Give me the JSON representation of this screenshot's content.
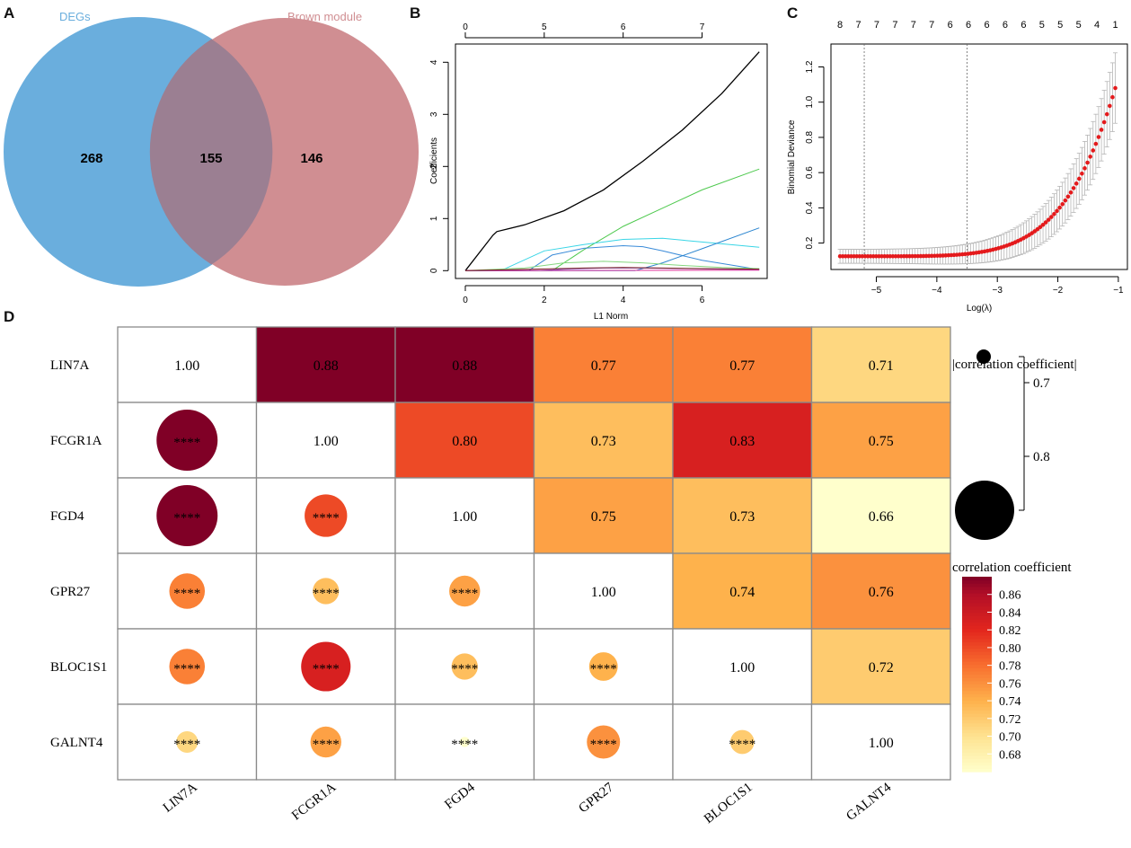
{
  "panels": {
    "A": "A",
    "B": "B",
    "C": "C",
    "D": "D"
  },
  "chart_data": [
    {
      "type": "venn",
      "panel": "A",
      "sets": [
        {
          "name": "DEGs",
          "color": "#6aaedd"
        },
        {
          "name": "Brown module",
          "color": "#d08e92"
        }
      ],
      "counts": {
        "only_first": "268",
        "intersection": "155",
        "only_second": "146"
      },
      "overlap_color": "#9b7f92"
    },
    {
      "type": "line",
      "panel": "B",
      "title": "",
      "xlabel": "L1 Norm",
      "ylabel": "Coefficients",
      "xlim": [
        -0.25,
        7.65
      ],
      "ylim": [
        -0.15,
        4.35
      ],
      "xticks": [
        0,
        2,
        4,
        6
      ],
      "yticks": [
        0,
        1,
        2,
        3,
        4
      ],
      "top_axis": {
        "positions": [
          0,
          2,
          4,
          6
        ],
        "labels": [
          "0",
          "5",
          "6",
          "7"
        ]
      },
      "series": [
        {
          "name": "black",
          "color": "#000000",
          "x": [
            0,
            0.7,
            0.8,
            1.5,
            2.5,
            3.5,
            4.5,
            5.5,
            6.5,
            7.45
          ],
          "y": [
            0,
            0.68,
            0.75,
            0.88,
            1.15,
            1.55,
            2.1,
            2.7,
            3.4,
            4.2
          ]
        },
        {
          "name": "green",
          "color": "#4ec94e",
          "x": [
            0,
            2.2,
            3,
            4,
            5,
            6,
            7.45
          ],
          "y": [
            0,
            0,
            0.4,
            0.85,
            1.2,
            1.55,
            1.95
          ]
        },
        {
          "name": "cyan",
          "color": "#39d5e6",
          "x": [
            0,
            0.9,
            2,
            3,
            4,
            5,
            6,
            7.45
          ],
          "y": [
            0,
            0,
            0.38,
            0.5,
            0.6,
            0.62,
            0.55,
            0.45
          ]
        },
        {
          "name": "blue",
          "color": "#3a8bd8",
          "x": [
            0,
            1.6,
            2.2,
            3,
            4,
            4.5,
            5,
            6,
            7.45
          ],
          "y": [
            0,
            0,
            0.3,
            0.43,
            0.48,
            0.46,
            0.38,
            0.2,
            0.02
          ]
        },
        {
          "name": "steelblue",
          "color": "#2c86d0",
          "x": [
            0,
            4.3,
            5,
            6,
            7.45
          ],
          "y": [
            0,
            0,
            0.15,
            0.42,
            0.82
          ]
        },
        {
          "name": "lightgreen",
          "color": "#86d67f",
          "x": [
            0,
            1.5,
            2.5,
            3.5,
            4.5,
            5.5,
            6.5,
            7.45
          ],
          "y": [
            0,
            0.05,
            0.15,
            0.18,
            0.15,
            0.1,
            0.06,
            0.04
          ]
        },
        {
          "name": "purple",
          "color": "#8a5ac8",
          "x": [
            0,
            1.8,
            2.5,
            3.5,
            4.5,
            5.5,
            6.5,
            7.45
          ],
          "y": [
            0,
            0,
            0.03,
            0.05,
            0.05,
            0.04,
            0.03,
            0.02
          ]
        },
        {
          "name": "magenta",
          "color": "#e0309a",
          "x": [
            0,
            7.45
          ],
          "y": [
            0,
            0.01
          ]
        },
        {
          "name": "darkred",
          "color": "#7a1f1f",
          "x": [
            0,
            3,
            4,
            5,
            6,
            7.45
          ],
          "y": [
            0,
            0.05,
            0.06,
            0.05,
            0.04,
            0.03
          ]
        }
      ]
    },
    {
      "type": "scatter",
      "panel": "C",
      "title": "",
      "xlabel": "Log(λ)",
      "ylabel": "Binomial Deviance",
      "xlim": [
        -5.75,
        -0.85
      ],
      "ylim": [
        0.05,
        1.33
      ],
      "xticks": [
        -5,
        -4,
        -3,
        -2,
        -1
      ],
      "yticks": [
        0.2,
        0.4,
        0.6,
        0.8,
        1.0,
        1.2
      ],
      "ytick_labels": [
        "0.2",
        "0.4",
        "0.6",
        "0.8",
        "1.0",
        "1.2"
      ],
      "top_axis_labels": [
        "8",
        "7",
        "7",
        "7",
        "7",
        "7",
        "6",
        "6",
        "6",
        "6",
        "6",
        "5",
        "5",
        "5",
        "4",
        "1"
      ],
      "vlines": [
        -5.2,
        -3.5
      ],
      "point_color": "#e41a1c",
      "errorbar_color": "#b5b5b5",
      "curve": {
        "x_start": -5.6,
        "x_end": -1.05,
        "n_points": 100,
        "y_base": 0.125,
        "y_end": 1.08,
        "err_min": 0.04,
        "err_max": 0.2
      }
    },
    {
      "type": "heatmap",
      "panel": "D",
      "genes": [
        "LIN7A",
        "FCGR1A",
        "FGD4",
        "GPR27",
        "BLOC1S1",
        "GALNT4"
      ],
      "matrix": [
        [
          "1.00",
          "0.88",
          "0.88",
          "0.77",
          "0.77",
          "0.71"
        ],
        [
          "0.88",
          "1.00",
          "0.80",
          "0.73",
          "0.83",
          "0.75"
        ],
        [
          "0.88",
          "0.80",
          "1.00",
          "0.75",
          "0.73",
          "0.66"
        ],
        [
          "0.77",
          "0.73",
          "0.75",
          "1.00",
          "0.74",
          "0.76"
        ],
        [
          "0.77",
          "0.83",
          "0.73",
          "0.74",
          "1.00",
          "0.72"
        ],
        [
          "0.71",
          "0.75",
          "0.66",
          "0.76",
          "0.72",
          "1.00"
        ]
      ],
      "significance": "****",
      "upper_triangle": "tile",
      "lower_triangle": "circle",
      "size_legend": {
        "title": "|correlation coefficient|",
        "ticks": [
          "0.7",
          "0.8"
        ]
      },
      "color_legend": {
        "title": "correlation coefficient",
        "ticks": [
          "0.86",
          "0.84",
          "0.82",
          "0.80",
          "0.78",
          "0.76",
          "0.74",
          "0.72",
          "0.70",
          "0.68"
        ],
        "range": [
          0.66,
          0.88
        ]
      },
      "color_scale": [
        {
          "v": 0.66,
          "c": "#ffffcc"
        },
        {
          "v": 0.7,
          "c": "#fee391"
        },
        {
          "v": 0.74,
          "c": "#feb24c"
        },
        {
          "v": 0.78,
          "c": "#f86f2f"
        },
        {
          "v": 0.82,
          "c": "#e3261d"
        },
        {
          "v": 0.86,
          "c": "#b30f27"
        },
        {
          "v": 0.88,
          "c": "#800026"
        }
      ]
    }
  ]
}
